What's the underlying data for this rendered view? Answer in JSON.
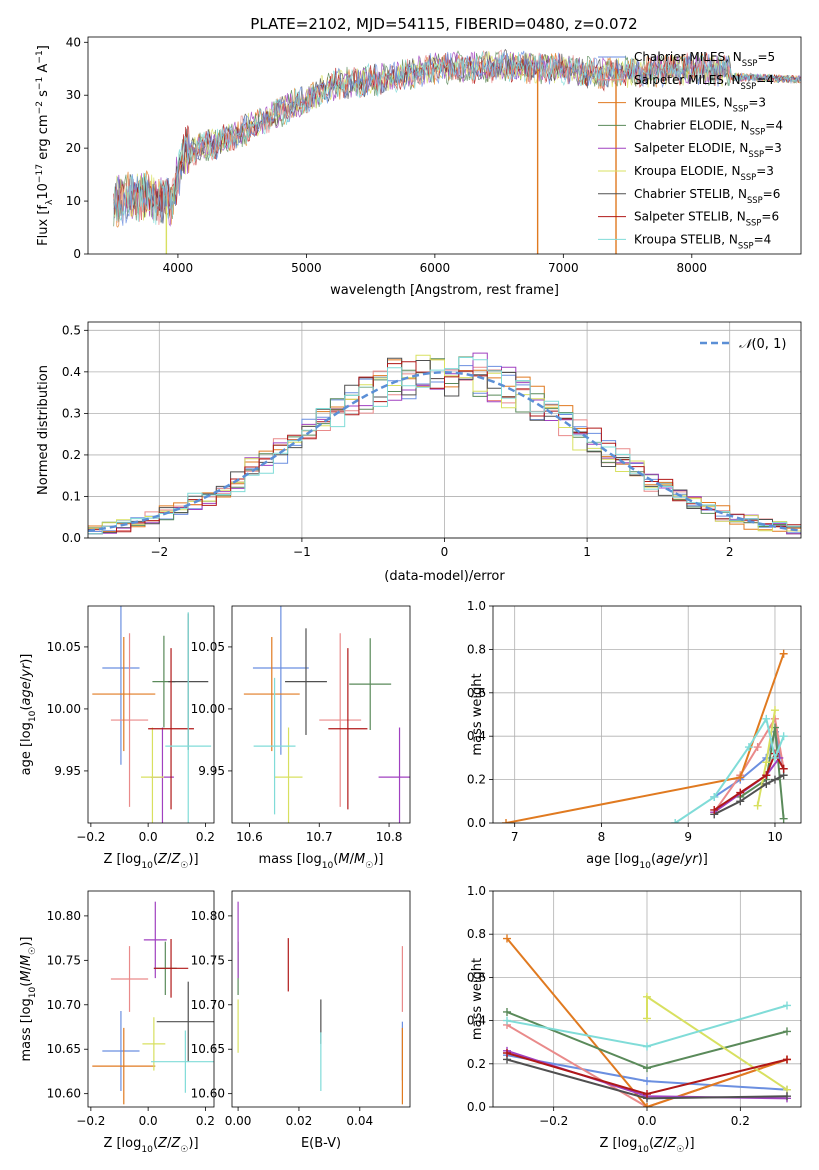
{
  "figure_title": "PLATE=2102, MJD=54115, FIBERID=0480, z=0.072",
  "colors": {
    "chabrier_miles": "#6b8fe0",
    "salpeter_miles": "#e98a8a",
    "kroupa_miles": "#e07a20",
    "chabrier_elodie": "#5a8a5a",
    "salpeter_elodie": "#a040c0",
    "kroupa_elodie": "#d8e060",
    "chabrier_stelib": "#505050",
    "salpeter_stelib": "#b01818",
    "kroupa_stelib": "#80dcd8",
    "gaussian": "#5b8fd6"
  },
  "chart_data": [
    {
      "id": "spectrum",
      "type": "line",
      "title": "PLATE=2102, MJD=54115, FIBERID=0480, z=0.072",
      "xlabel": "wavelength [Angstrom, rest frame]",
      "ylabel": "Flux [f_λ 10^-17 erg cm^-2 s^-1 A^-1]",
      "xlim": [
        3300,
        8850
      ],
      "ylim": [
        0,
        41
      ],
      "xticks": [
        "4000",
        "5000",
        "6000",
        "7000",
        "8000"
      ],
      "yticks": [
        "0",
        "10",
        "20",
        "30",
        "40"
      ],
      "grid": false,
      "legend": "top-right",
      "continuum": [
        [
          3500,
          10
        ],
        [
          3700,
          11
        ],
        [
          3950,
          10
        ],
        [
          4050,
          19
        ],
        [
          4300,
          21
        ],
        [
          4500,
          23
        ],
        [
          4800,
          27
        ],
        [
          5000,
          29
        ],
        [
          5200,
          32
        ],
        [
          5600,
          33
        ],
        [
          6000,
          35
        ],
        [
          6500,
          35.5
        ],
        [
          7000,
          35
        ],
        [
          7300,
          34
        ],
        [
          7600,
          34.5
        ],
        [
          8000,
          35
        ],
        [
          8300,
          34.5
        ],
        [
          8800,
          34
        ]
      ],
      "spikes": [
        [
          3910,
          0
        ],
        [
          6800,
          0
        ],
        [
          7410,
          0
        ]
      ],
      "series": [
        {
          "name": "Chabrier MILES, N_SSP=5"
        },
        {
          "name": "Salpeter MILES, N_SSP=4"
        },
        {
          "name": "Kroupa MILES, N_SSP=3"
        },
        {
          "name": "Chabrier ELODIE, N_SSP=4"
        },
        {
          "name": "Salpeter ELODIE, N_SSP=3"
        },
        {
          "name": "Kroupa ELODIE, N_SSP=3"
        },
        {
          "name": "Chabrier STELIB, N_SSP=6"
        },
        {
          "name": "Salpeter STELIB, N_SSP=6"
        },
        {
          "name": "Kroupa STELIB, N_SSP=4"
        }
      ]
    },
    {
      "id": "residuals",
      "type": "line",
      "xlabel": "(data-model)/error",
      "ylabel": "Normed distribution",
      "xlim": [
        -2.5,
        2.5
      ],
      "ylim": [
        0,
        0.52
      ],
      "xticks": [
        "-2",
        "-1",
        "0",
        "1",
        "2"
      ],
      "yticks": [
        "0.0",
        "0.1",
        "0.2",
        "0.3",
        "0.4",
        "0.5"
      ],
      "grid": true,
      "legend": "top-right",
      "legend_label": "N(0,1)",
      "bin_width": 0.1,
      "bin_start": -2.5
    },
    {
      "id": "age_vs_Z",
      "type": "scatter",
      "xlabel": "Z [log10(Z/Z☉)]",
      "ylabel": "age [log10(age/yr)]",
      "xlim": [
        -0.21,
        0.23
      ],
      "ylim": [
        9.908,
        10.083
      ],
      "xticks": [
        "-0.2",
        "0.0",
        "0.2"
      ],
      "yticks": [
        "9.95",
        "10.00",
        "10.05"
      ],
      "points": [
        {
          "x": -0.095,
          "y": 10.033,
          "xerr": 0.065,
          "yerr": 0.078
        },
        {
          "x": -0.065,
          "y": 9.991,
          "xerr": 0.065,
          "yerr": 0.07
        },
        {
          "x": -0.085,
          "y": 10.012,
          "xerr": 0.11,
          "yerr": 0.046
        },
        {
          "x": 0.055,
          "y": 10.022,
          "xerr": 0.04,
          "yerr": 0.037
        },
        {
          "x": 0.05,
          "y": 9.945,
          "xerr": 0.04,
          "yerr": 0.04
        },
        {
          "x": 0.015,
          "y": 9.945,
          "xerr": 0.04,
          "yerr": 0.04
        },
        {
          "x": 0.14,
          "y": 10.022,
          "xerr": 0.07,
          "yerr": 0.055
        },
        {
          "x": 0.08,
          "y": 9.984,
          "xerr": 0.08,
          "yerr": 0.065
        },
        {
          "x": 0.14,
          "y": 9.97,
          "xerr": 0.08,
          "yerr": 0.108
        }
      ]
    },
    {
      "id": "age_vs_mass",
      "type": "scatter",
      "xlabel": "mass [log10(M/M☉)]",
      "ylabel": "",
      "xlim": [
        10.575,
        10.83
      ],
      "ylim": [
        9.908,
        10.083
      ],
      "xticks": [
        "10.6",
        "10.7",
        "10.8"
      ],
      "yticks": [
        "9.95",
        "10.00",
        "10.05"
      ],
      "points": [
        {
          "x": 10.645,
          "y": 10.033,
          "xerr": 0.04,
          "yerr": 0.07
        },
        {
          "x": 10.73,
          "y": 9.991,
          "xerr": 0.03,
          "yerr": 0.07
        },
        {
          "x": 10.632,
          "y": 10.012,
          "xerr": 0.04,
          "yerr": 0.046
        },
        {
          "x": 10.773,
          "y": 10.02,
          "xerr": 0.03,
          "yerr": 0.037
        },
        {
          "x": 10.815,
          "y": 9.945,
          "xerr": 0.03,
          "yerr": 0.04
        },
        {
          "x": 10.656,
          "y": 9.945,
          "xerr": 0.02,
          "yerr": 0.04
        },
        {
          "x": 10.681,
          "y": 10.022,
          "xerr": 0.03,
          "yerr": 0.043
        },
        {
          "x": 10.741,
          "y": 9.984,
          "xerr": 0.028,
          "yerr": 0.065
        },
        {
          "x": 10.636,
          "y": 9.97,
          "xerr": 0.03,
          "yerr": 0.055
        }
      ]
    },
    {
      "id": "weight_vs_age",
      "type": "line",
      "xlabel": "age [log10(age/yr)]",
      "ylabel": "mass weight",
      "xlim": [
        6.75,
        10.3
      ],
      "ylim": [
        0,
        1.0
      ],
      "xticks": [
        "7",
        "8",
        "9",
        "10"
      ],
      "yticks": [
        "0.0",
        "0.2",
        "0.4",
        "0.6",
        "0.8",
        "1.0"
      ],
      "grid": true,
      "series": [
        {
          "x": [
            9.3,
            9.6,
            9.9,
            10.0,
            10.1
          ],
          "y": [
            0.12,
            0.2,
            0.3,
            0.42,
            0.25
          ]
        },
        {
          "x": [
            9.3,
            9.6,
            9.8,
            10.0,
            10.1
          ],
          "y": [
            0.05,
            0.22,
            0.35,
            0.48,
            0.25
          ]
        },
        {
          "x": [
            6.9,
            9.6,
            10.1
          ],
          "y": [
            0.0,
            0.21,
            0.78
          ]
        },
        {
          "x": [
            9.6,
            9.9,
            10.0,
            10.1
          ],
          "y": [
            0.12,
            0.2,
            0.44,
            0.02
          ]
        },
        {
          "x": [
            9.3,
            9.9,
            10.05
          ],
          "y": [
            0.05,
            0.22,
            0.3
          ]
        },
        {
          "x": [
            9.8,
            9.9,
            10.0
          ],
          "y": [
            0.08,
            0.28,
            0.52
          ]
        },
        {
          "x": [
            9.3,
            9.6,
            9.9,
            10.0,
            10.1
          ],
          "y": [
            0.04,
            0.1,
            0.18,
            0.2,
            0.22
          ]
        },
        {
          "x": [
            9.3,
            9.6,
            9.9,
            10.0,
            10.1
          ],
          "y": [
            0.06,
            0.14,
            0.22,
            0.32,
            0.25
          ]
        },
        {
          "x": [
            8.85,
            9.3,
            9.7,
            9.9,
            10.0,
            10.1
          ],
          "y": [
            0.0,
            0.12,
            0.35,
            0.48,
            0.3,
            0.4
          ]
        }
      ]
    },
    {
      "id": "mass_vs_Z",
      "type": "scatter",
      "xlabel": "Z [log10(Z/Z☉)]",
      "ylabel": "mass [log10(M/M☉)]",
      "xlim": [
        -0.21,
        0.23
      ],
      "ylim": [
        10.585,
        10.828
      ],
      "xticks": [
        "-0.2",
        "0.0",
        "0.2"
      ],
      "yticks": [
        "10.60",
        "10.65",
        "10.70",
        "10.75",
        "10.80"
      ],
      "points": [
        {
          "x": -0.095,
          "y": 10.648,
          "xerr": 0.065,
          "yerr": 0.045
        },
        {
          "x": -0.065,
          "y": 10.729,
          "xerr": 0.065,
          "yerr": 0.037
        },
        {
          "x": -0.085,
          "y": 10.631,
          "xerr": 0.11,
          "yerr": 0.043
        },
        {
          "x": 0.06,
          "y": 10.741,
          "xerr": 0.04,
          "yerr": 0.03
        },
        {
          "x": 0.025,
          "y": 10.773,
          "xerr": 0.04,
          "yerr": 0.043
        },
        {
          "x": 0.02,
          "y": 10.656,
          "xerr": 0.04,
          "yerr": 0.03
        },
        {
          "x": 0.14,
          "y": 10.681,
          "xerr": 0.11,
          "yerr": 0.045
        },
        {
          "x": 0.08,
          "y": 10.741,
          "xerr": 0.06,
          "yerr": 0.033
        },
        {
          "x": 0.13,
          "y": 10.636,
          "xerr": 0.12,
          "yerr": 0.035
        }
      ]
    },
    {
      "id": "mass_vs_ebv",
      "type": "scatter",
      "xlabel": "E(B-V)",
      "ylabel": "",
      "xlim": [
        -0.002,
        0.0565
      ],
      "ylim": [
        10.585,
        10.828
      ],
      "xticks": [
        "0.00",
        "0.02",
        "0.04"
      ],
      "yticks": [
        "10.60",
        "10.65",
        "10.70",
        "10.75",
        "10.80"
      ],
      "points": [
        {
          "x": 0.054,
          "y": 10.648,
          "xerr": 0,
          "yerr": 0.033
        },
        {
          "x": 0.054,
          "y": 10.729,
          "xerr": 0,
          "yerr": 0.037
        },
        {
          "x": 0.054,
          "y": 10.631,
          "xerr": 0,
          "yerr": 0.043
        },
        {
          "x": 0.0,
          "y": 10.741,
          "xerr": 0,
          "yerr": 0.03
        },
        {
          "x": 0.0,
          "y": 10.773,
          "xerr": 0,
          "yerr": 0.043
        },
        {
          "x": 0.0,
          "y": 10.676,
          "xerr": 0,
          "yerr": 0.03
        },
        {
          "x": 0.0272,
          "y": 10.681,
          "xerr": 0,
          "yerr": 0.025
        },
        {
          "x": 0.0165,
          "y": 10.745,
          "xerr": 0,
          "yerr": 0.03
        },
        {
          "x": 0.0272,
          "y": 10.636,
          "xerr": 0,
          "yerr": 0.033
        }
      ]
    },
    {
      "id": "weight_vs_Z",
      "type": "line",
      "xlabel": "Z [log10(Z/Z☉)]",
      "ylabel": "mass weight",
      "xlim": [
        -0.33,
        0.33
      ],
      "ylim": [
        0,
        1.0
      ],
      "xticks": [
        "-0.2",
        "0.0",
        "0.2"
      ],
      "yticks": [
        "0.0",
        "0.2",
        "0.4",
        "0.6",
        "0.8",
        "1.0"
      ],
      "grid": true,
      "series": [
        {
          "x": [
            -0.3,
            0.0,
            0.3
          ],
          "y": [
            0.24,
            0.12,
            0.08
          ]
        },
        {
          "x": [
            -0.3,
            0.0,
            0.3
          ],
          "y": [
            0.38,
            0.0,
            0.22
          ]
        },
        {
          "x": [
            -0.3,
            0.0,
            0.3
          ],
          "y": [
            0.78,
            0.0,
            0.22
          ]
        },
        {
          "x": [
            -0.3,
            0.0,
            0.3
          ],
          "y": [
            0.44,
            0.18,
            0.35
          ]
        },
        {
          "x": [
            -0.3,
            0.0,
            0.3
          ],
          "y": [
            0.26,
            0.05,
            0.04
          ]
        },
        {
          "x": [
            0.0,
            0.0,
            0.3
          ],
          "y": [
            0.41,
            0.51,
            0.08
          ]
        },
        {
          "x": [
            -0.3,
            0.0,
            0.3
          ],
          "y": [
            0.22,
            0.04,
            0.05
          ]
        },
        {
          "x": [
            -0.3,
            0.0,
            0.3
          ],
          "y": [
            0.25,
            0.06,
            0.22
          ]
        },
        {
          "x": [
            -0.3,
            0.0,
            0.3
          ],
          "y": [
            0.4,
            0.28,
            0.47
          ]
        }
      ]
    }
  ]
}
